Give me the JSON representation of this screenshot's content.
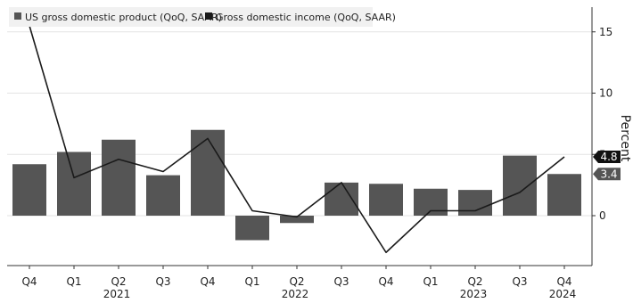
{
  "chart_data": {
    "type": "bar",
    "ylabel": "Percent",
    "ylim": [
      -6,
      17
    ],
    "yticks": [
      0,
      5,
      10,
      15
    ],
    "grid": true,
    "legend_position": "top-left",
    "categories": [
      "Q4",
      "Q1",
      "Q2",
      "Q3",
      "Q4",
      "Q1",
      "Q2",
      "Q3",
      "Q4",
      "Q1",
      "Q2",
      "Q3",
      "Q4"
    ],
    "year_labels": [
      {
        "label": "2021",
        "index": 2
      },
      {
        "label": "2022",
        "index": 6
      },
      {
        "label": "2023",
        "index": 10
      },
      {
        "label": "2024",
        "index": 12
      }
    ],
    "series": [
      {
        "name": "US gross domestic product (QoQ, SAAR)",
        "kind": "bar",
        "color": "#555555",
        "values": [
          4.2,
          5.2,
          6.2,
          3.3,
          7.0,
          -2.0,
          -0.6,
          2.7,
          2.6,
          2.2,
          2.1,
          4.9,
          3.4
        ]
      },
      {
        "name": "Gross domestic income (QoQ, SAAR)",
        "kind": "line",
        "color": "#1a1a1a",
        "values": [
          15.5,
          3.1,
          4.6,
          3.6,
          6.3,
          0.4,
          -0.1,
          2.7,
          -3.0,
          0.4,
          0.4,
          1.9,
          4.8
        ]
      }
    ],
    "end_labels": [
      {
        "text": "4.8",
        "value": 4.8,
        "bg": "#111111",
        "fg": "#ffffff"
      },
      {
        "text": "3.4",
        "value": 3.4,
        "bg": "#555555",
        "fg": "#ffffff"
      }
    ]
  }
}
